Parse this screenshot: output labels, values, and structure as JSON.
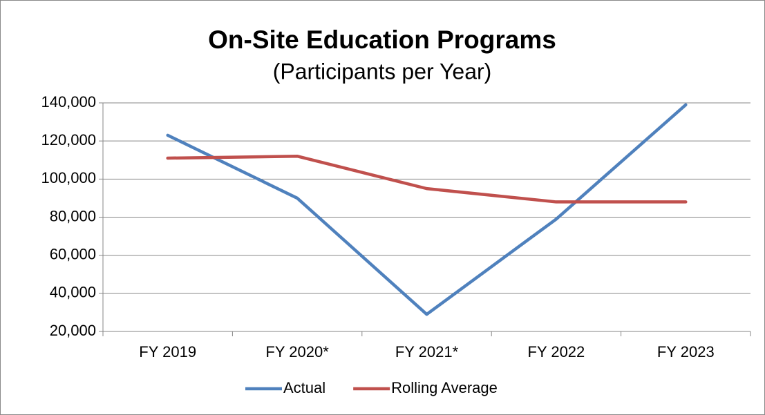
{
  "chart_data": {
    "type": "line",
    "title": "On-Site Education Programs",
    "subtitle": "(Participants per Year)",
    "categories": [
      "FY 2019",
      "FY 2020*",
      "FY 2021*",
      "FY 2022",
      "FY 2023"
    ],
    "series": [
      {
        "name": "Actual",
        "color": "#4f81bd",
        "values": [
          123000,
          90000,
          29000,
          79000,
          139000
        ]
      },
      {
        "name": "Rolling Average",
        "color": "#c0504d",
        "values": [
          111000,
          112000,
          95000,
          88000,
          88000
        ]
      }
    ],
    "ylim": [
      20000,
      140000
    ],
    "yticks": [
      {
        "value": 20000,
        "label": "20,000"
      },
      {
        "value": 40000,
        "label": "40,000"
      },
      {
        "value": 60000,
        "label": "60,000"
      },
      {
        "value": 80000,
        "label": "80,000"
      },
      {
        "value": 100000,
        "label": "100,000"
      },
      {
        "value": 120000,
        "label": "120,000"
      },
      {
        "value": 140000,
        "label": "140,000"
      }
    ],
    "grid": true,
    "legend": "bottom"
  }
}
